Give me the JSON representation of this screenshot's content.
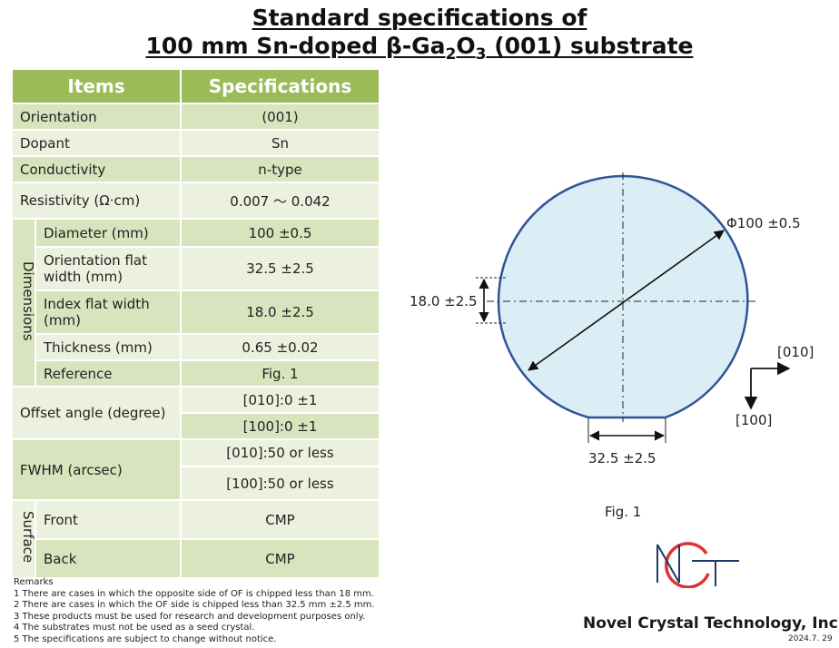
{
  "title": {
    "line1": "Standard specifications of",
    "line2_pre": "100 mm Sn-doped β-Ga",
    "sub1": "2",
    "mid": "O",
    "sub2": "3",
    "line2_post": " (001) substrate"
  },
  "table": {
    "header_items": "Items",
    "header_specs": "Specifications",
    "orientation": {
      "label": "Orientation",
      "value": "(001)"
    },
    "dopant": {
      "label": "Dopant",
      "value": "Sn"
    },
    "conductivity": {
      "label": "Conductivity",
      "value": "n-type"
    },
    "resistivity": {
      "label": "Resistivity (Ω·cm)",
      "value": "0.007 ～ 0.042"
    },
    "dimensions_group": "Dimensions",
    "diameter": {
      "label": "Diameter (mm)",
      "value": "100 ±0.5"
    },
    "of_width": {
      "label": "Orientation flat width (mm)",
      "value": "32.5 ±2.5"
    },
    "if_width": {
      "label": "Index flat width (mm)",
      "value": "18.0 ±2.5"
    },
    "thickness": {
      "label": "Thickness (mm)",
      "value": "0.65 ±0.02"
    },
    "reference": {
      "label": "Reference",
      "value": "Fig. 1"
    },
    "offset": {
      "label": "Offset angle (degree)",
      "value1": "[010]:0 ±1",
      "value2": "[100]:0 ±1"
    },
    "fwhm": {
      "label": "FWHM (arcsec)",
      "value1": "[010]:50 or less",
      "value2": "[100]:50 or less"
    },
    "surface_group": "Surface",
    "front": {
      "label": "Front",
      "value": "CMP"
    },
    "back": {
      "label": "Back",
      "value": "CMP"
    }
  },
  "remarks": {
    "heading": "Remarks",
    "items": [
      "1 There are cases in which the opposite side of OF is chipped less than 18 mm.",
      "2 There are cases in which the OF side is chipped less than 32.5 mm ±2.5 mm.",
      "3 These products must be used for research and development purposes only.",
      "4 The substrates must not be used as a seed crystal.",
      "5 The specifications are subject to change without notice."
    ]
  },
  "figure": {
    "diameter_label": "Φ100 ±0.5",
    "index_flat_label": "18.0 ±2.5",
    "orientation_flat_label": "32.5 ±2.5",
    "dir_x_label": "[010]",
    "dir_y_label": "[100]",
    "caption": "Fig. 1",
    "wafer_fill": "#dbeef6",
    "wafer_stroke": "#2f5597"
  },
  "colors": {
    "header": "#9bbb59",
    "row_dark": "#d7e4bd",
    "row_light": "#ebf1de",
    "logo_red": "#e03030",
    "logo_navy": "#1f3a68"
  },
  "company": "Novel Crystal Technology, Inc.",
  "date": "2024.7. 29"
}
